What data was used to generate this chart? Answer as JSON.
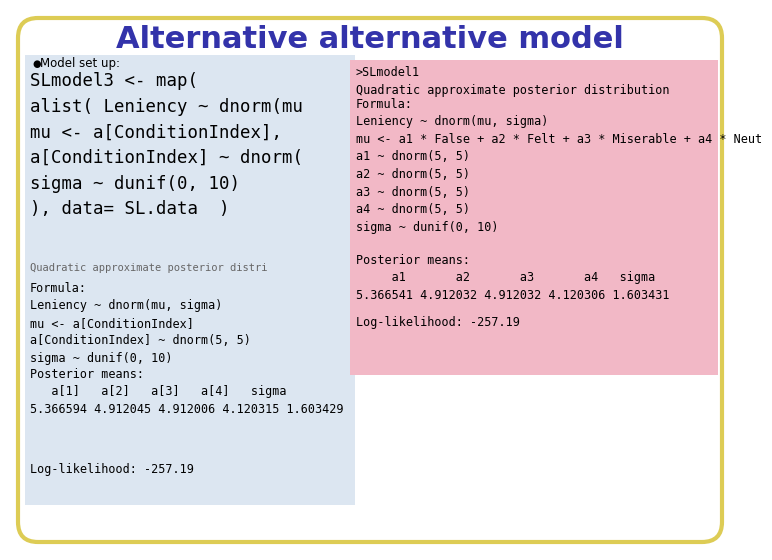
{
  "title": "Alternative alternative model",
  "title_color": "#3333aa",
  "title_fontsize": 22,
  "bg_color": "#ffffff",
  "border_color": "#ddcc55",
  "left_panel_bg": "#dce6f1",
  "right_panel_bg": "#f2b8c6",
  "bullet_char": "●",
  "bullet_text": "  Model set up:",
  "left_top_text": "SLmodel3 <- map(\nalist( Leniency ~ dnorm(mu\nmu <- a[ConditionIndex],\na[ConditionIndex] ~ dnorm(\nsigma ~ dunif(0, 10)\n), data= SL.data  )",
  "left_overlap_text": "Quadratic approximate posterior distri",
  "left_formula": "Formula:\nLeniency ~ dnorm(mu, sigma)\nmu <- a[ConditionIndex]\na[ConditionIndex] ~ dnorm(5, 5)\nsigma ~ dunif(0, 10)",
  "left_posterior": "Posterior means:\n   a[1]   a[2]   a[3]   a[4]   sigma\n5.366594 4.912045 4.912006 4.120315 1.603429",
  "left_loglik": "Log-likelihood: -257.19",
  "right_header": ">SLmodel1\nQuadratic approximate posterior distribution",
  "right_formula": "Formula:\nLeniency ~ dnorm(mu, sigma)\nmu <- a1 * False + a2 * Felt + a3 * Miserable + a4 * Neut\na1 ~ dnorm(5, 5)\na2 ~ dnorm(5, 5)\na3 ~ dnorm(5, 5)\na4 ~ dnorm(5, 5)\nsigma ~ dunif(0, 10)",
  "right_posterior": "Posterior means:\n     a1       a2       a3       a4   sigma\n5.366541 4.912032 4.912032 4.120306 1.603431",
  "right_loglik": "Log-likelihood: -257.19",
  "font_family": "monospace",
  "text_fontsize": 8.5
}
